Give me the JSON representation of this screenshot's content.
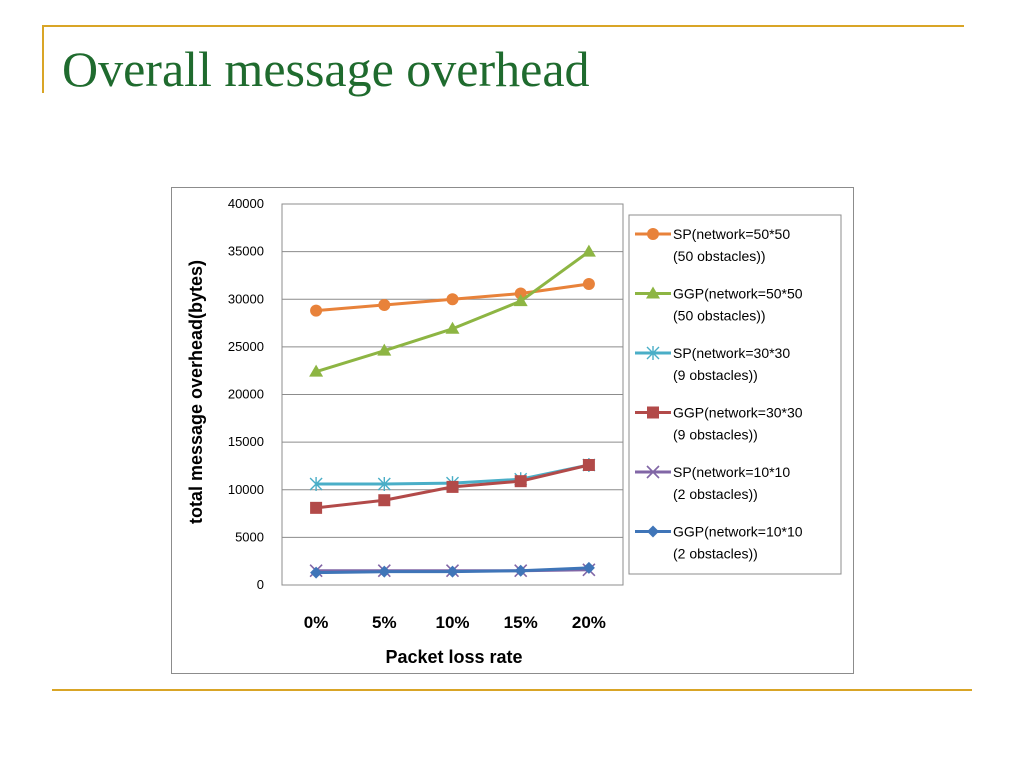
{
  "slide": {
    "title": "Overall message overhead"
  },
  "chart_data": {
    "type": "line",
    "title": "",
    "xlabel": "Packet loss rate",
    "ylabel": "total message overhead(bytes)",
    "categories": [
      "0%",
      "5%",
      "10%",
      "15%",
      "20%"
    ],
    "ylim": [
      0,
      40000
    ],
    "yticks": [
      0,
      5000,
      10000,
      15000,
      20000,
      25000,
      30000,
      35000,
      40000
    ],
    "grid": true,
    "legend_position": "right",
    "series": [
      {
        "name": "SP(network=50*50 (50 obstacles))",
        "legend_lines": [
          "SP(network=50*50",
          "(50 obstacles))"
        ],
        "color": "#e8823a",
        "marker": "circle",
        "values": [
          28800,
          29400,
          30000,
          30600,
          31600
        ]
      },
      {
        "name": "GGP(network=50*50 (50 obstacles))",
        "legend_lines": [
          "GGP(network=50*50",
          "(50 obstacles))"
        ],
        "color": "#8db543",
        "marker": "triangle",
        "values": [
          22400,
          24600,
          26900,
          29800,
          35000
        ]
      },
      {
        "name": "SP(network=30*30 (9 obstacles))",
        "legend_lines": [
          "SP(network=30*30",
          "(9 obstacles))"
        ],
        "color": "#4aaec7",
        "marker": "star",
        "values": [
          10600,
          10600,
          10700,
          11100,
          12600
        ]
      },
      {
        "name": "GGP(network=30*30 (9 obstacles))",
        "legend_lines": [
          "GGP(network=30*30",
          "(9 obstacles))"
        ],
        "color": "#b24a49",
        "marker": "square",
        "values": [
          8100,
          8900,
          10300,
          10900,
          12600
        ]
      },
      {
        "name": "SP(network=10*10 (2 obstacles))",
        "legend_lines": [
          "SP(network=10*10",
          "(2 obstacles))"
        ],
        "color": "#8166a6",
        "marker": "x",
        "values": [
          1500,
          1500,
          1500,
          1500,
          1600
        ]
      },
      {
        "name": "GGP(network=10*10 (2 obstacles))",
        "legend_lines": [
          "GGP(network=10*10",
          "(2 obstacles))"
        ],
        "color": "#3f75b8",
        "marker": "diamond",
        "values": [
          1300,
          1400,
          1400,
          1500,
          1800
        ]
      }
    ]
  }
}
